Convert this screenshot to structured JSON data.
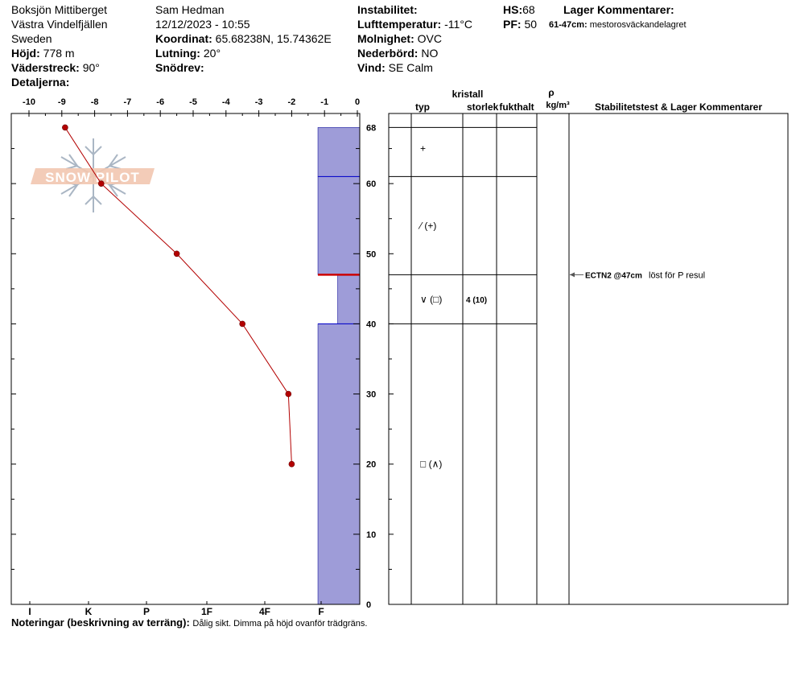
{
  "header": {
    "location": "Boksjön Mittiberget",
    "region": "Västra Vindelfjällen",
    "country": "Sweden",
    "elevation_label": "Höjd:",
    "elevation_value": "778 m",
    "aspect_label": "Väderstreck:",
    "aspect_value": "90°",
    "details_label": "Detaljerna:",
    "observer": "Sam Hedman",
    "datetime": "12/12/2023 - 10:55",
    "coord_label": "Koordinat:",
    "coord_value": "65.68238N, 15.74362E",
    "slope_label": "Lutning:",
    "slope_value": "20°",
    "drift_label": "Snödrev:",
    "drift_value": "",
    "instability_label": "Instabilitet:",
    "instability_value": "",
    "airtemp_label": "Lufttemperatur:",
    "airtemp_value": "-11°C",
    "cloud_label": "Molnighet:",
    "cloud_value": "OVC",
    "precip_label": "Nederbörd:",
    "precip_value": "NO",
    "wind_label": "Vind:",
    "wind_value": "SE Calm",
    "hs_label": "HS:",
    "hs_value": "68",
    "pf_label": "PF:",
    "pf_value": "50",
    "layer_comments_title": "Lager Kommentarer:",
    "layer_comment_range": "61-47cm:",
    "layer_comment_text": "mestorosväckandelagret"
  },
  "watermark": "SNOW PILOT",
  "notes": {
    "label": "Noteringar (beskrivning av terräng):",
    "text": "Dålig sikt. Dimma på höjd ovanför trädgräns."
  },
  "table_headers": {
    "crystal": "kristall",
    "type": "typ",
    "size": "storlek",
    "moisture": "fukthalt",
    "rho": "ρ",
    "density_unit": "kg/m³",
    "comments": "Stabilitetstest & Lager Kommentarer"
  },
  "colors": {
    "hardness_fill": "#9e9cd8",
    "temp_line": "#b30000",
    "weak_layer": "#cc0000"
  },
  "chart_data": {
    "type": "line",
    "temp_axis": {
      "min": -10,
      "max": 0,
      "ticks": [
        "-10",
        "-9",
        "-8",
        "-7",
        "-6",
        "-5",
        "-4",
        "-3",
        "-2",
        "-1",
        "0"
      ]
    },
    "height_axis": {
      "min": 0,
      "max": 70,
      "ticks": [
        "0",
        "10",
        "20",
        "30",
        "40",
        "50",
        "60",
        "68"
      ]
    },
    "hardness_axis": {
      "labels": [
        "I",
        "K",
        "P",
        "1F",
        "4F",
        "F"
      ]
    },
    "temperature_profile": [
      {
        "height": 68,
        "temp": -8.9
      },
      {
        "height": 60,
        "temp": -7.8
      },
      {
        "height": 50,
        "temp": -5.5
      },
      {
        "height": 40,
        "temp": -3.5
      },
      {
        "height": 30,
        "temp": -2.1
      },
      {
        "height": 20,
        "temp": -2.0
      }
    ],
    "hardness_profile": [
      {
        "top": 68,
        "bottom": 61,
        "hardness_temp": -1.2
      },
      {
        "top": 61,
        "bottom": 47,
        "hardness_temp": -1.2
      },
      {
        "top": 47,
        "bottom": 40,
        "hardness_temp": -0.6
      },
      {
        "top": 40,
        "bottom": 0,
        "hardness_temp": -1.2
      }
    ],
    "layer_boundaries": [
      68,
      61,
      47,
      40
    ],
    "layers": [
      {
        "mid": 65,
        "type": "+",
        "size": "",
        "moisture": ""
      },
      {
        "mid": 54,
        "type": "⁄ (+)",
        "size": "",
        "moisture": ""
      },
      {
        "mid": 43.5,
        "type": "∨ (□)",
        "size": "4 (10)",
        "moisture": ""
      },
      {
        "mid": 20,
        "type": "□ (∧)",
        "size": "",
        "moisture": ""
      }
    ],
    "stability_tests": [
      {
        "height": 47,
        "test": "ECTN2 @47cm",
        "comment": "löst för P resul"
      }
    ]
  }
}
